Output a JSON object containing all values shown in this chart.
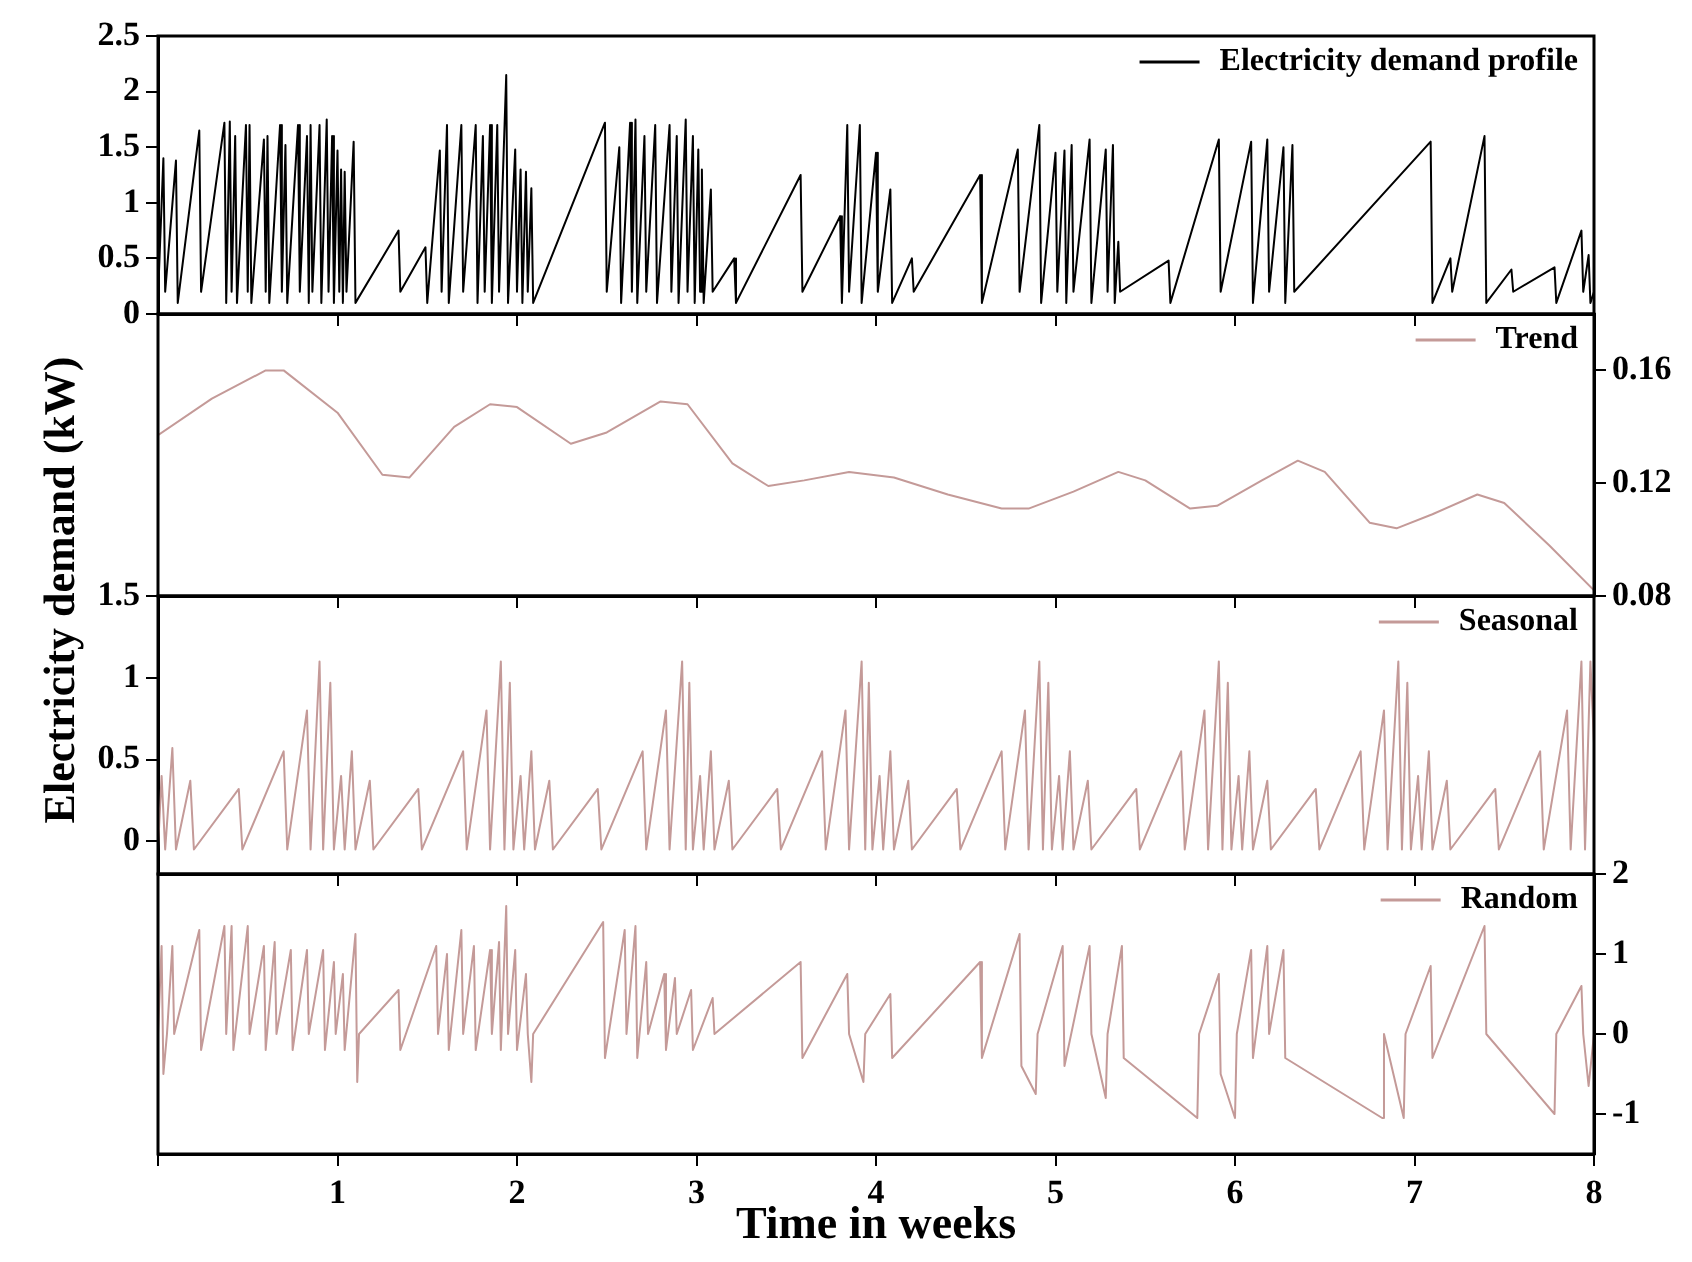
{
  "chart_data": [
    {
      "type": "line",
      "legend": "top right",
      "tick_labels": "y",
      "xlim": [
        0,
        8
      ],
      "xticks": [
        {
          "value": 0,
          "label": null
        },
        {
          "value": 1,
          "label": null
        },
        {
          "value": 2,
          "label": null
        },
        {
          "value": 3,
          "label": null
        },
        {
          "value": 4,
          "label": null
        },
        {
          "value": 5,
          "label": null
        },
        {
          "value": 6,
          "label": null
        },
        {
          "value": 7,
          "label": null
        },
        {
          "value": 8,
          "label": null
        }
      ],
      "ylim": [
        0,
        2.5
      ],
      "yticks": [
        0,
        0.5,
        1,
        1.5,
        2,
        2.5
      ],
      "series": [
        {
          "name": "Electricity demand profile",
          "color": "#000000",
          "x": [
            0,
            0.03,
            0.04,
            0.1,
            0.11,
            0.23,
            0.24,
            0.37,
            0.38,
            0.4,
            0.41,
            0.43,
            0.44,
            0.49,
            0.5,
            0.51,
            0.52,
            0.59,
            0.6,
            0.61,
            0.62,
            0.68,
            0.69,
            0.71,
            0.72,
            0.78,
            0.79,
            0.83,
            0.84,
            0.85,
            0.86,
            0.9,
            0.91,
            0.94,
            0.95,
            0.97,
            0.98,
            1,
            1.01,
            1.02,
            1.03,
            1.04,
            1.05,
            1.09,
            1.1,
            1.34,
            1.35,
            1.49,
            1.5,
            1.57,
            1.58,
            1.61,
            1.62,
            1.69,
            1.7,
            1.77,
            1.78,
            1.81,
            1.82,
            1.85,
            1.86,
            1.89,
            1.9,
            1.94,
            1.95,
            1.99,
            2,
            2.02,
            2.03,
            2.05,
            2.06,
            2.08,
            2.09,
            2.49,
            2.5,
            2.57,
            2.58,
            2.63,
            2.64,
            2.66,
            2.67,
            2.71,
            2.72,
            2.77,
            2.78,
            2.85,
            2.86,
            2.89,
            2.9,
            2.94,
            2.95,
            2.98,
            2.99,
            3.01,
            3.02,
            3.03,
            3.04,
            3.08,
            3.09,
            3.21,
            3.22,
            3.58,
            3.59,
            3.8,
            3.81,
            3.84,
            3.85,
            3.91,
            3.92,
            4,
            4.01,
            4.08,
            4.09,
            4.2,
            4.21,
            4.58,
            4.59,
            4.79,
            4.8,
            4.91,
            4.92,
            5,
            5.01,
            5.05,
            5.06,
            5.09,
            5.1,
            5.19,
            5.2,
            5.28,
            5.29,
            5.32,
            5.33,
            5.35,
            5.36,
            5.63,
            5.64,
            5.91,
            5.92,
            6.09,
            6.1,
            6.18,
            6.19,
            6.27,
            6.28,
            6.32,
            6.33,
            7.09,
            7.1,
            7.2,
            7.21,
            7.39,
            7.4,
            7.54,
            7.55,
            7.78,
            7.79,
            7.93,
            7.94,
            7.97,
            7.98,
            8
          ],
          "values": [
            0.15,
            1.4,
            0.2,
            1.38,
            0.1,
            1.65,
            0.2,
            1.72,
            0.1,
            1.73,
            0.2,
            1.6,
            0.1,
            1.7,
            0.2,
            1.7,
            0.1,
            1.57,
            0.2,
            1.6,
            0.1,
            1.7,
            0.2,
            1.52,
            0.1,
            1.7,
            0.2,
            1.6,
            0.1,
            1.7,
            0.2,
            1.7,
            0.1,
            1.75,
            0.2,
            1.6,
            0.1,
            1.47,
            0.2,
            1.3,
            0.1,
            1.28,
            0.2,
            1.55,
            0.1,
            0.75,
            0.2,
            0.6,
            0.1,
            1.47,
            0.2,
            1.7,
            0.1,
            1.7,
            0.2,
            1.7,
            0.1,
            1.6,
            0.2,
            1.7,
            0.1,
            1.7,
            0.2,
            2.15,
            0.1,
            1.48,
            0.2,
            1.3,
            0.1,
            1.28,
            0.2,
            1.13,
            0.1,
            1.72,
            0.2,
            1.5,
            0.1,
            1.72,
            0.2,
            1.75,
            0.1,
            1.6,
            0.2,
            1.7,
            0.1,
            1.7,
            0.2,
            1.6,
            0.1,
            1.75,
            0.2,
            1.6,
            0.1,
            1.48,
            0.2,
            1.3,
            0.1,
            1.12,
            0.2,
            0.5,
            0.1,
            1.25,
            0.2,
            0.88,
            0.1,
            1.7,
            0.2,
            1.7,
            0.1,
            1.45,
            0.2,
            1.12,
            0.1,
            0.5,
            0.2,
            1.25,
            0.1,
            1.48,
            0.2,
            1.7,
            0.1,
            1.45,
            0.2,
            1.47,
            0.1,
            1.52,
            0.2,
            1.57,
            0.1,
            1.48,
            0.2,
            1.52,
            0.1,
            0.65,
            0.2,
            0.48,
            0.1,
            1.57,
            0.2,
            1.55,
            0.1,
            1.57,
            0.2,
            1.5,
            0.1,
            1.52,
            0.2,
            1.55,
            0.1,
            0.5,
            0.2,
            1.6,
            0.1,
            0.4,
            0.2,
            0.42,
            0.1,
            0.75,
            0.2,
            0.53,
            0.1,
            0.2
          ]
        }
      ]
    },
    {
      "type": "line",
      "legend": "top right",
      "tick_labels": "y",
      "ylabel": "Electricity demand (kW)",
      "xlim": [
        0,
        8
      ],
      "xticks": [
        {
          "value": 0,
          "label": null
        },
        {
          "value": 1,
          "label": null
        },
        {
          "value": 2,
          "label": null
        },
        {
          "value": 3,
          "label": null
        },
        {
          "value": 4,
          "label": null
        },
        {
          "value": 5,
          "label": null
        },
        {
          "value": 6,
          "label": null
        },
        {
          "value": 7,
          "label": null
        },
        {
          "value": 8,
          "label": null
        }
      ],
      "y2lim": [
        0.08,
        0.18
      ],
      "y2ticks": [
        0.08,
        0.12,
        0.16
      ],
      "series": [
        {
          "name": "Trend",
          "color": "#c49a98",
          "axis": "y2",
          "x": [
            0,
            0.3,
            0.6,
            0.7,
            1,
            1.25,
            1.4,
            1.65,
            1.85,
            2,
            2.3,
            2.5,
            2.8,
            2.95,
            3.2,
            3.4,
            3.6,
            3.85,
            4.1,
            4.4,
            4.7,
            4.85,
            5.1,
            5.35,
            5.5,
            5.75,
            5.9,
            6.15,
            6.35,
            6.5,
            6.75,
            6.9,
            7.1,
            7.35,
            7.5,
            7.75,
            8
          ],
          "values": [
            0.137,
            0.15,
            0.16,
            0.16,
            0.145,
            0.123,
            0.122,
            0.14,
            0.148,
            0.147,
            0.134,
            0.138,
            0.149,
            0.148,
            0.127,
            0.119,
            0.121,
            0.124,
            0.122,
            0.116,
            0.111,
            0.111,
            0.117,
            0.124,
            0.121,
            0.111,
            0.112,
            0.121,
            0.128,
            0.124,
            0.106,
            0.104,
            0.109,
            0.116,
            0.113,
            0.098,
            0.082
          ]
        }
      ]
    },
    {
      "type": "line",
      "legend": "top right",
      "tick_labels": "y",
      "xlim": [
        0,
        8
      ],
      "xticks": [
        {
          "value": 0,
          "label": null
        },
        {
          "value": 1,
          "label": null
        },
        {
          "value": 2,
          "label": null
        },
        {
          "value": 3,
          "label": null
        },
        {
          "value": 4,
          "label": null
        },
        {
          "value": 5,
          "label": null
        },
        {
          "value": 6,
          "label": null
        },
        {
          "value": 7,
          "label": null
        },
        {
          "value": 8,
          "label": null
        }
      ],
      "ylim": [
        -0.2,
        1.5
      ],
      "yticks": [
        0,
        0.5,
        1,
        1.5
      ],
      "series": [
        {
          "name": "Seasonal",
          "color": "#c49a98",
          "x": [
            0,
            0.02,
            0.04,
            0.08,
            0.1,
            0.18,
            0.2,
            0.45,
            0.47,
            0.7,
            0.72,
            0.83,
            0.85,
            0.9,
            0.92,
            0.96,
            0.98,
            1.02,
            1.04,
            1.08,
            1.1,
            1.18,
            1.2,
            1.45,
            1.47,
            1.7,
            1.72,
            1.83,
            1.85,
            1.91,
            1.93,
            1.96,
            1.98,
            2.02,
            2.04,
            2.08,
            2.1,
            2.18,
            2.2,
            2.45,
            2.47,
            2.7,
            2.72,
            2.83,
            2.85,
            2.92,
            2.94,
            2.96,
            2.98,
            3.02,
            3.04,
            3.08,
            3.1,
            3.18,
            3.2,
            3.45,
            3.47,
            3.7,
            3.72,
            3.83,
            3.85,
            3.92,
            3.94,
            3.96,
            3.98,
            4.02,
            4.04,
            4.08,
            4.1,
            4.18,
            4.2,
            4.45,
            4.47,
            4.7,
            4.72,
            4.83,
            4.85,
            4.91,
            4.93,
            4.96,
            4.98,
            5.02,
            5.04,
            5.08,
            5.1,
            5.18,
            5.2,
            5.45,
            5.47,
            5.7,
            5.72,
            5.83,
            5.85,
            5.91,
            5.93,
            5.96,
            5.98,
            6.02,
            6.04,
            6.08,
            6.1,
            6.18,
            6.2,
            6.45,
            6.47,
            6.7,
            6.72,
            6.83,
            6.85,
            6.91,
            6.93,
            6.96,
            6.98,
            7.02,
            7.04,
            7.08,
            7.1,
            7.18,
            7.2,
            7.45,
            7.47,
            7.7,
            7.72,
            7.85,
            7.87,
            7.93,
            7.95,
            7.98,
            8
          ],
          "values": [
            -0.05,
            0.4,
            -0.05,
            0.57,
            -0.05,
            0.37,
            -0.05,
            0.32,
            -0.05,
            0.55,
            -0.05,
            0.8,
            -0.05,
            1.1,
            -0.05,
            0.97,
            -0.05,
            0.4,
            -0.05,
            0.55,
            -0.05,
            0.37,
            -0.05,
            0.32,
            -0.05,
            0.55,
            -0.05,
            0.8,
            -0.05,
            1.1,
            -0.05,
            0.97,
            -0.05,
            0.4,
            -0.05,
            0.55,
            -0.05,
            0.37,
            -0.05,
            0.32,
            -0.05,
            0.55,
            -0.05,
            0.8,
            -0.05,
            1.1,
            -0.05,
            0.97,
            -0.05,
            0.4,
            -0.05,
            0.55,
            -0.05,
            0.37,
            -0.05,
            0.32,
            -0.05,
            0.55,
            -0.05,
            0.8,
            -0.05,
            1.1,
            -0.05,
            0.97,
            -0.05,
            0.4,
            -0.05,
            0.55,
            -0.05,
            0.37,
            -0.05,
            0.32,
            -0.05,
            0.55,
            -0.05,
            0.8,
            -0.05,
            1.1,
            -0.05,
            0.97,
            -0.05,
            0.4,
            -0.05,
            0.55,
            -0.05,
            0.37,
            -0.05,
            0.32,
            -0.05,
            0.55,
            -0.05,
            0.8,
            -0.05,
            1.1,
            -0.05,
            0.97,
            -0.05,
            0.4,
            -0.05,
            0.55,
            -0.05,
            0.37,
            -0.05,
            0.32,
            -0.05,
            0.55,
            -0.05,
            0.8,
            -0.05,
            1.1,
            -0.05,
            0.97,
            -0.05,
            0.4,
            -0.05,
            0.55,
            -0.05,
            0.37,
            -0.05,
            0.32,
            -0.05,
            0.55,
            -0.05,
            0.8,
            -0.05,
            1.1,
            -0.05,
            1.1,
            0.6
          ]
        }
      ]
    },
    {
      "type": "line",
      "legend": "top right",
      "xlabel": "Time in weeks",
      "xlim": [
        0,
        8
      ],
      "xticks": [
        {
          "value": 0,
          "label": null
        },
        1,
        2,
        3,
        4,
        5,
        6,
        7,
        8
      ],
      "y2lim": [
        -1.5,
        2
      ],
      "y2ticks": [
        -1,
        0,
        1,
        2
      ],
      "series": [
        {
          "name": "Random",
          "color": "#c49a98",
          "axis": "y2",
          "x": [
            0,
            0.02,
            0.03,
            0.05,
            0.08,
            0.09,
            0.23,
            0.24,
            0.37,
            0.38,
            0.41,
            0.42,
            0.5,
            0.51,
            0.59,
            0.6,
            0.65,
            0.66,
            0.74,
            0.75,
            0.83,
            0.84,
            0.92,
            0.93,
            0.98,
            0.99,
            1.03,
            1.04,
            1.1,
            1.11,
            1.12,
            1.34,
            1.35,
            1.55,
            1.56,
            1.61,
            1.62,
            1.69,
            1.7,
            1.76,
            1.77,
            1.85,
            1.86,
            1.9,
            1.91,
            1.94,
            1.95,
            1.99,
            2,
            2.05,
            2.06,
            2.08,
            2.09,
            2.48,
            2.49,
            2.6,
            2.61,
            2.66,
            2.67,
            2.72,
            2.73,
            2.82,
            2.83,
            2.88,
            2.89,
            2.97,
            2.98,
            3.09,
            3.1,
            3.58,
            3.59,
            3.84,
            3.85,
            3.93,
            3.94,
            4.08,
            4.09,
            4.58,
            4.59,
            4.8,
            4.81,
            4.89,
            4.9,
            5.04,
            5.05,
            5.19,
            5.2,
            5.28,
            5.29,
            5.37,
            5.38,
            5.79,
            5.8,
            5.91,
            5.92,
            6,
            6.01,
            6.09,
            6.1,
            6.18,
            6.19,
            6.27,
            6.28,
            6.82,
            6.83,
            6.94,
            6.95,
            7.09,
            7.1,
            7.39,
            7.4,
            7.78,
            7.79,
            7.93,
            7.94,
            7.97,
            8
          ],
          "values": [
            0,
            1.1,
            -0.5,
            0,
            1.1,
            0,
            1.3,
            -0.2,
            1.35,
            0,
            1.35,
            -0.2,
            1.35,
            0,
            1.1,
            -0.2,
            1.15,
            0,
            1.05,
            -0.2,
            1.05,
            0,
            1.05,
            -0.2,
            0.9,
            0,
            0.75,
            -0.2,
            1.25,
            -0.6,
            0,
            0.55,
            -0.2,
            1.1,
            0,
            1,
            -0.2,
            1.3,
            0,
            1.1,
            -0.2,
            1.05,
            0,
            1.15,
            -0.2,
            1.6,
            0,
            1.05,
            -0.2,
            0.75,
            0,
            -0.6,
            0,
            1.4,
            -0.3,
            1.3,
            0,
            1.35,
            -0.3,
            0.9,
            0,
            0.75,
            -0.2,
            0.7,
            0,
            0.55,
            -0.2,
            0.45,
            0,
            0.9,
            -0.3,
            0.75,
            0,
            -0.6,
            0,
            0.5,
            -0.3,
            0.9,
            -0.3,
            1.25,
            -0.4,
            -0.75,
            0,
            1.1,
            -0.4,
            1.1,
            0,
            -0.8,
            0,
            1.1,
            -0.3,
            -1.05,
            0,
            0.75,
            -0.5,
            -1.05,
            0,
            1.05,
            -0.3,
            1.1,
            0,
            1.05,
            -0.3,
            -1.05,
            0,
            -1.05,
            0,
            0.85,
            -0.3,
            1.35,
            0,
            -1,
            0,
            0.6,
            0,
            -0.65,
            0
          ]
        }
      ]
    }
  ]
}
